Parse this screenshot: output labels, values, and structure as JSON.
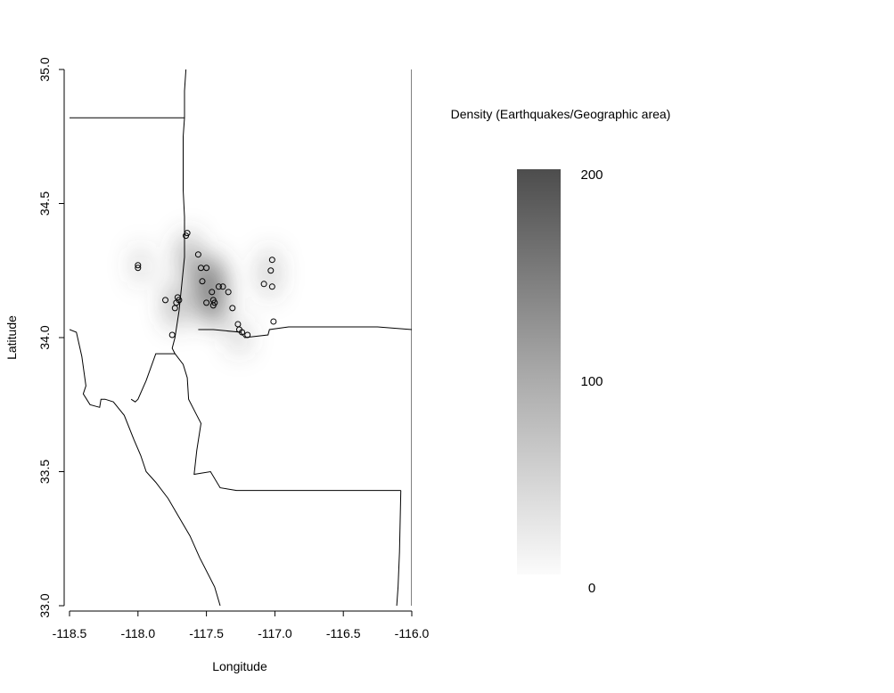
{
  "chart_data": {
    "type": "heatmap",
    "xlabel": "Longitude",
    "ylabel": "Latitude",
    "xlim": [
      -118.5,
      -116.0
    ],
    "ylim": [
      33.0,
      35.0
    ],
    "x_ticks": [
      "-118.5",
      "-118.0",
      "-117.5",
      "-117.0",
      "-116.5",
      "-116.0"
    ],
    "y_ticks": [
      "33.0",
      "33.5",
      "34.0",
      "34.5",
      "35.0"
    ],
    "legend": {
      "title": "Density (Earthquakes/Geographic area)",
      "ticks": [
        "200",
        "100",
        "0"
      ],
      "range": [
        0,
        200
      ]
    },
    "colors": {
      "high": "#4d4d4d",
      "low": "#ffffff",
      "line": "#000000"
    },
    "points": [
      {
        "x": -117.65,
        "y": 34.38
      },
      {
        "x": -117.64,
        "y": 34.39
      },
      {
        "x": -118.0,
        "y": 34.27
      },
      {
        "x": -118.0,
        "y": 34.26
      },
      {
        "x": -117.56,
        "y": 34.31
      },
      {
        "x": -117.54,
        "y": 34.26
      },
      {
        "x": -117.5,
        "y": 34.26
      },
      {
        "x": -117.53,
        "y": 34.21
      },
      {
        "x": -117.46,
        "y": 34.17
      },
      {
        "x": -117.41,
        "y": 34.19
      },
      {
        "x": -117.38,
        "y": 34.19
      },
      {
        "x": -117.34,
        "y": 34.17
      },
      {
        "x": -117.71,
        "y": 34.15
      },
      {
        "x": -117.7,
        "y": 34.14
      },
      {
        "x": -117.72,
        "y": 34.13
      },
      {
        "x": -117.8,
        "y": 34.14
      },
      {
        "x": -117.73,
        "y": 34.11
      },
      {
        "x": -117.5,
        "y": 34.13
      },
      {
        "x": -117.45,
        "y": 34.14
      },
      {
        "x": -117.44,
        "y": 34.13
      },
      {
        "x": -117.45,
        "y": 34.12
      },
      {
        "x": -117.31,
        "y": 34.11
      },
      {
        "x": -117.75,
        "y": 34.01
      },
      {
        "x": -117.27,
        "y": 34.05
      },
      {
        "x": -117.26,
        "y": 34.03
      },
      {
        "x": -117.24,
        "y": 34.02
      },
      {
        "x": -117.2,
        "y": 34.01
      },
      {
        "x": -117.02,
        "y": 34.29
      },
      {
        "x": -117.03,
        "y": 34.25
      },
      {
        "x": -117.08,
        "y": 34.2
      },
      {
        "x": -117.02,
        "y": 34.19
      },
      {
        "x": -117.01,
        "y": 34.06
      }
    ],
    "density_blobs": [
      {
        "x": -117.47,
        "y": 34.18,
        "sx": 0.1,
        "sy": 0.12,
        "value": 190
      },
      {
        "x": -117.63,
        "y": 34.3,
        "sx": 0.07,
        "sy": 0.09,
        "value": 120
      },
      {
        "x": -117.72,
        "y": 34.12,
        "sx": 0.07,
        "sy": 0.08,
        "value": 120
      },
      {
        "x": -117.98,
        "y": 34.27,
        "sx": 0.05,
        "sy": 0.07,
        "value": 70
      },
      {
        "x": -117.04,
        "y": 34.24,
        "sx": 0.06,
        "sy": 0.09,
        "value": 85
      },
      {
        "x": -117.26,
        "y": 34.0,
        "sx": 0.06,
        "sy": 0.06,
        "value": 75
      },
      {
        "x": -117.4,
        "y": 34.08,
        "sx": 0.05,
        "sy": 0.05,
        "value": 70
      }
    ],
    "boundaries": [
      [
        [
          -118.5,
          34.82
        ],
        [
          -117.66,
          34.82
        ]
      ],
      [
        [
          -117.65,
          35.0
        ],
        [
          -117.66,
          34.92
        ],
        [
          -117.66,
          34.82
        ],
        [
          -117.67,
          34.75
        ],
        [
          -117.67,
          34.55
        ],
        [
          -117.66,
          34.45
        ],
        [
          -117.66,
          34.3
        ],
        [
          -117.68,
          34.2
        ],
        [
          -117.7,
          34.1
        ],
        [
          -117.73,
          34.0
        ],
        [
          -117.75,
          33.96
        ],
        [
          -117.73,
          33.94
        ],
        [
          -117.8,
          33.94
        ]
      ],
      [
        [
          -117.8,
          33.94
        ],
        [
          -117.87,
          33.94
        ],
        [
          -117.94,
          33.84
        ],
        [
          -118.0,
          33.77
        ],
        [
          -118.02,
          33.76
        ],
        [
          -118.05,
          33.77
        ]
      ],
      [
        [
          -118.5,
          34.03
        ],
        [
          -118.45,
          34.02
        ],
        [
          -118.41,
          33.93
        ],
        [
          -118.38,
          33.82
        ],
        [
          -118.4,
          33.79
        ],
        [
          -118.35,
          33.75
        ],
        [
          -118.28,
          33.74
        ],
        [
          -118.27,
          33.77
        ],
        [
          -118.24,
          33.77
        ],
        [
          -118.18,
          33.76
        ],
        [
          -118.1,
          33.71
        ],
        [
          -118.03,
          33.62
        ],
        [
          -117.98,
          33.56
        ],
        [
          -117.94,
          33.5
        ],
        [
          -117.87,
          33.46
        ],
        [
          -117.78,
          33.4
        ],
        [
          -117.7,
          33.33
        ],
        [
          -117.62,
          33.26
        ],
        [
          -117.55,
          33.18
        ],
        [
          -117.44,
          33.07
        ],
        [
          -117.4,
          33.0
        ]
      ],
      [
        [
          -117.73,
          33.94
        ],
        [
          -117.67,
          33.9
        ],
        [
          -117.64,
          33.85
        ],
        [
          -117.63,
          33.77
        ],
        [
          -117.58,
          33.72
        ],
        [
          -117.54,
          33.68
        ],
        [
          -117.57,
          33.58
        ],
        [
          -117.59,
          33.49
        ],
        [
          -117.47,
          33.5
        ],
        [
          -117.4,
          33.44
        ],
        [
          -117.28,
          33.43
        ],
        [
          -116.08,
          33.43
        ]
      ],
      [
        [
          -117.56,
          34.03
        ],
        [
          -117.45,
          34.03
        ],
        [
          -117.25,
          34.02
        ],
        [
          -117.22,
          34.0
        ],
        [
          -117.05,
          34.01
        ],
        [
          -117.04,
          34.03
        ],
        [
          -116.9,
          34.04
        ],
        [
          -116.25,
          34.04
        ],
        [
          -116.0,
          34.03
        ]
      ],
      [
        [
          -116.08,
          33.43
        ],
        [
          -116.09,
          33.2
        ],
        [
          -116.1,
          33.07
        ],
        [
          -116.11,
          33.0
        ]
      ],
      [
        [
          -116.0,
          35.0
        ],
        [
          -116.0,
          33.0
        ]
      ]
    ]
  }
}
